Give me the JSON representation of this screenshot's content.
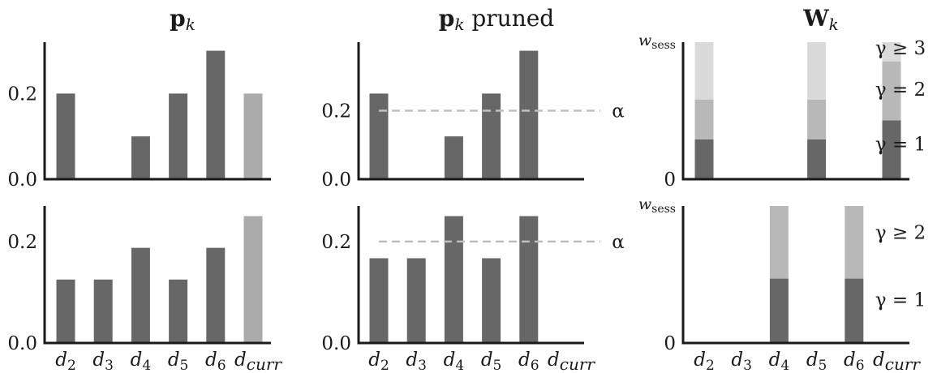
{
  "colors": {
    "dark": "#676767",
    "highlight": "#ababab",
    "gamma1": "#676767",
    "gamma2": "#b8b8b8",
    "gamma3": "#dadada"
  },
  "categories": [
    "d2",
    "d3",
    "d4",
    "d5",
    "d6",
    "dcurr"
  ],
  "category_labels": [
    {
      "base": "d",
      "sub": "2"
    },
    {
      "base": "d",
      "sub": "3"
    },
    {
      "base": "d",
      "sub": "4"
    },
    {
      "base": "d",
      "sub": "5"
    },
    {
      "base": "d",
      "sub": "6"
    },
    {
      "base": "d",
      "sub": "curr"
    }
  ],
  "chart_data": [
    {
      "type": "bar",
      "title": "p",
      "title_sub": "k",
      "title_suffix": "",
      "row": "top",
      "values": [
        0.2,
        0.0,
        0.1,
        0.2,
        0.3,
        0.2
      ],
      "highlight_index": 5,
      "ylim": [
        0,
        0.32
      ],
      "yticks": [
        {
          "value": 0.0,
          "label": "0.0"
        },
        {
          "value": 0.2,
          "label": "0.2"
        }
      ]
    },
    {
      "type": "bar",
      "title": "p",
      "title_sub": "k",
      "title_suffix": " pruned",
      "row": "top",
      "values": [
        0.25,
        0.0,
        0.125,
        0.25,
        0.375,
        0.0
      ],
      "ylim": [
        0,
        0.4
      ],
      "yticks": [
        {
          "value": 0.0,
          "label": "0.0"
        },
        {
          "value": 0.2,
          "label": "0.2"
        }
      ],
      "threshold": {
        "value": 0.2,
        "label": "α"
      }
    },
    {
      "type": "bar",
      "title": "W",
      "title_sub": "k",
      "title_suffix": "",
      "row": "top",
      "stacked": true,
      "series": [
        {
          "name": "γ = 1",
          "values": [
            0.29,
            0,
            0,
            0.29,
            0,
            0.43
          ],
          "color": "#676767"
        },
        {
          "name": "γ = 2",
          "values": [
            0.29,
            0,
            0,
            0.29,
            0,
            0.43
          ],
          "color": "#b8b8b8"
        },
        {
          "name": "γ ≥ 3",
          "values": [
            0.42,
            0,
            0,
            0.42,
            0,
            0.14
          ],
          "color": "#dadada"
        }
      ],
      "ylim": [
        0,
        1
      ],
      "yticks": [
        {
          "value": 0,
          "label": "0"
        },
        {
          "value": 1,
          "label": "w",
          "label_sub": "sess"
        }
      ],
      "legend_labels": [
        "γ ≥ 3",
        "γ = 2",
        "γ = 1"
      ]
    },
    {
      "type": "bar",
      "row": "bottom",
      "values": [
        0.125,
        0.125,
        0.1875,
        0.125,
        0.1875,
        0.25
      ],
      "highlight_index": 5,
      "ylim": [
        0,
        0.27
      ],
      "yticks": [
        {
          "value": 0.0,
          "label": "0.0"
        },
        {
          "value": 0.2,
          "label": "0.2"
        }
      ]
    },
    {
      "type": "bar",
      "row": "bottom",
      "values": [
        0.167,
        0.167,
        0.25,
        0.167,
        0.25,
        0.0
      ],
      "ylim": [
        0,
        0.27
      ],
      "yticks": [
        {
          "value": 0.0,
          "label": "0.0"
        },
        {
          "value": 0.2,
          "label": "0.2"
        }
      ],
      "threshold": {
        "value": 0.2,
        "label": "α"
      }
    },
    {
      "type": "bar",
      "row": "bottom",
      "stacked": true,
      "series": [
        {
          "name": "γ = 1",
          "values": [
            0,
            0,
            0.47,
            0,
            0.47,
            0
          ],
          "color": "#676767"
        },
        {
          "name": "γ ≥ 2",
          "values": [
            0,
            0,
            0.53,
            0,
            0.53,
            0
          ],
          "color": "#b8b8b8"
        }
      ],
      "ylim": [
        0,
        1
      ],
      "yticks": [
        {
          "value": 0,
          "label": "0"
        },
        {
          "value": 1,
          "label": "w",
          "label_sub": "sess"
        }
      ],
      "legend_labels": [
        "γ ≥ 2",
        "γ = 1"
      ]
    }
  ]
}
